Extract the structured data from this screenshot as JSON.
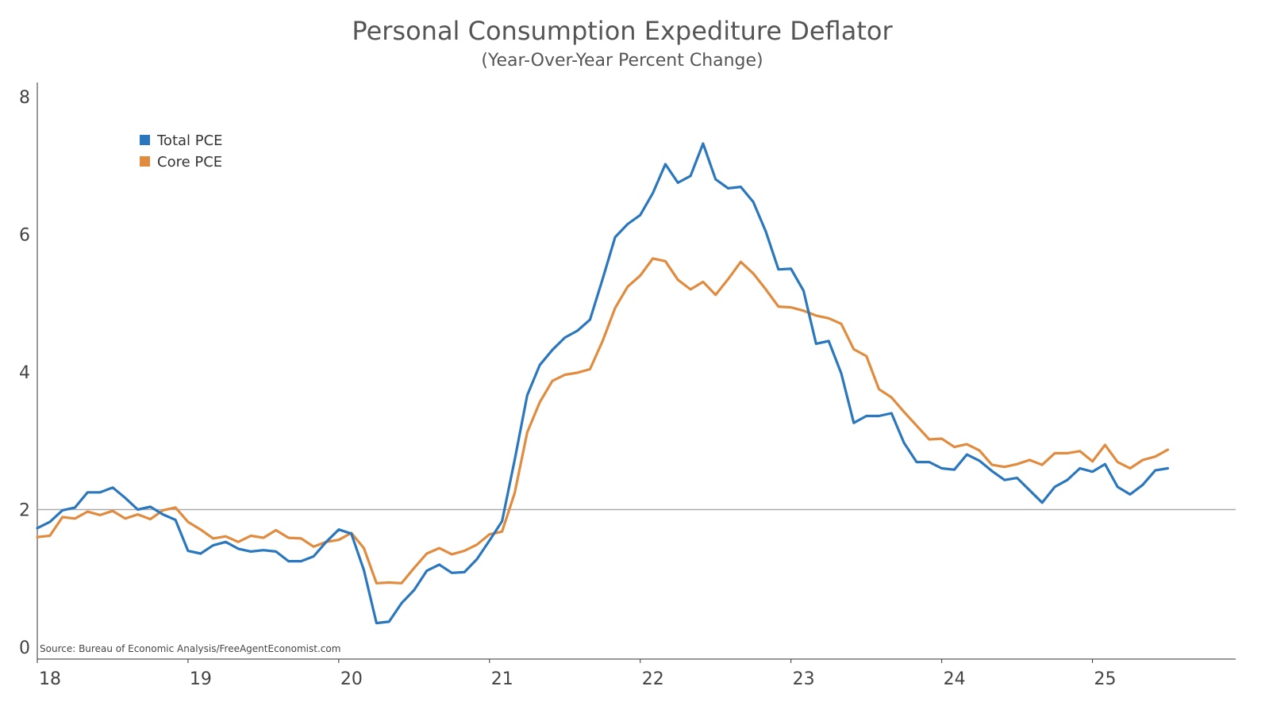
{
  "chart_data": {
    "type": "line",
    "title": "Personal Consumption Expediture Deflator",
    "subtitle": "(Year-Over-Year Percent Change)",
    "xlabel": "",
    "ylabel": "",
    "x_ticks": [
      "18",
      "19",
      "20",
      "21",
      "22",
      "23",
      "24",
      "25"
    ],
    "x_tick_values": [
      2018,
      2019,
      2020,
      2021,
      2022,
      2023,
      2024,
      2025
    ],
    "y_ticks": [
      "0",
      "2",
      "4",
      "6",
      "8"
    ],
    "y_tick_values": [
      0,
      2,
      4,
      6,
      8
    ],
    "xlim": [
      2018,
      2025.95
    ],
    "ylim": [
      0,
      8
    ],
    "reference_line": 2,
    "grid": false,
    "legend_position": "top-left",
    "source": "Source: Bureau of Economic Analysis/FreeAgentEconomist.com",
    "x_start": "2018-01",
    "x_step": "monthly",
    "series": [
      {
        "name": "Total PCE",
        "color": "#2a77bd",
        "values": [
          1.73,
          1.82,
          1.99,
          2.03,
          2.25,
          2.25,
          2.32,
          2.17,
          2.0,
          2.04,
          1.93,
          1.85,
          1.4,
          1.36,
          1.48,
          1.53,
          1.43,
          1.39,
          1.41,
          1.39,
          1.25,
          1.25,
          1.32,
          1.53,
          1.71,
          1.65,
          1.12,
          0.35,
          0.37,
          0.64,
          0.83,
          1.11,
          1.2,
          1.08,
          1.09,
          1.28,
          1.55,
          1.83,
          2.72,
          3.66,
          4.1,
          4.32,
          4.5,
          4.6,
          4.76,
          5.35,
          5.96,
          6.15,
          6.28,
          6.6,
          7.02,
          6.75,
          6.85,
          7.32,
          6.8,
          6.67,
          6.69,
          6.47,
          6.04,
          5.49,
          5.5,
          5.18,
          4.41,
          4.45,
          3.98,
          3.26,
          3.36,
          3.36,
          3.4,
          2.97,
          2.69,
          2.69,
          2.6,
          2.58,
          2.8,
          2.71,
          2.56,
          2.43,
          2.46,
          2.28,
          2.1,
          2.33,
          2.43,
          2.6,
          2.55,
          2.66,
          2.33,
          2.22,
          2.36,
          2.57,
          2.6
        ]
      },
      {
        "name": "Core PCE",
        "color": "#e08b3e",
        "values": [
          1.6,
          1.62,
          1.89,
          1.87,
          1.97,
          1.92,
          1.98,
          1.87,
          1.93,
          1.86,
          1.99,
          2.03,
          1.82,
          1.71,
          1.58,
          1.61,
          1.53,
          1.62,
          1.59,
          1.7,
          1.59,
          1.58,
          1.46,
          1.53,
          1.56,
          1.66,
          1.44,
          0.93,
          0.94,
          0.93,
          1.15,
          1.36,
          1.44,
          1.35,
          1.4,
          1.49,
          1.64,
          1.68,
          2.24,
          3.12,
          3.56,
          3.87,
          3.96,
          3.99,
          4.04,
          4.45,
          4.93,
          5.24,
          5.4,
          5.65,
          5.61,
          5.34,
          5.2,
          5.31,
          5.12,
          5.35,
          5.6,
          5.43,
          5.2,
          4.95,
          4.94,
          4.89,
          4.82,
          4.78,
          4.7,
          4.33,
          4.23,
          3.75,
          3.63,
          3.42,
          3.22,
          3.02,
          3.03,
          2.91,
          2.95,
          2.86,
          2.65,
          2.62,
          2.66,
          2.72,
          2.65,
          2.82,
          2.82,
          2.85,
          2.7,
          2.94,
          2.69,
          2.6,
          2.72,
          2.77,
          2.87
        ]
      }
    ]
  }
}
